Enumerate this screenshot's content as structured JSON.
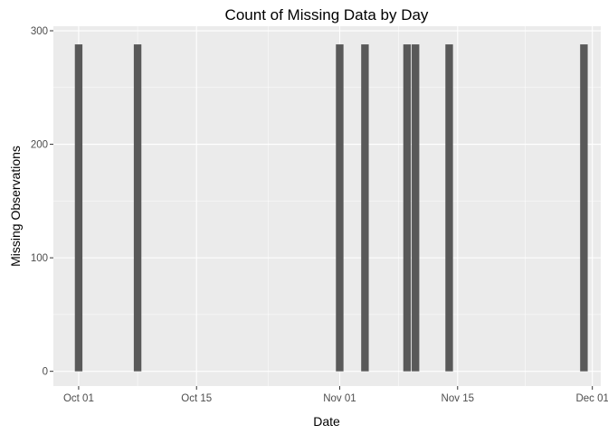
{
  "chart_data": {
    "type": "bar",
    "title": "Count of Missing Data by Day",
    "xlabel": "Date",
    "ylabel": "Missing Observations",
    "x": [
      "2012-10-01",
      "2012-10-08",
      "2012-11-01",
      "2012-11-04",
      "2012-11-09",
      "2012-11-10",
      "2012-11-14",
      "2012-11-30"
    ],
    "values": [
      288,
      288,
      288,
      288,
      288,
      288,
      288,
      288
    ],
    "xlim": [
      "2012-09-28",
      "2012-12-02"
    ],
    "ylim": [
      -13,
      304
    ],
    "x_ticks": [
      {
        "value": "2012-10-01",
        "label": "Oct 01"
      },
      {
        "value": "2012-10-15",
        "label": "Oct 15"
      },
      {
        "value": "2012-11-01",
        "label": "Nov 01"
      },
      {
        "value": "2012-11-15",
        "label": "Nov 15"
      },
      {
        "value": "2012-12-01",
        "label": "Dec 01"
      }
    ],
    "y_ticks": [
      0,
      100,
      200,
      300
    ],
    "grid": true,
    "legend": "none",
    "colors": {
      "bar": "#595959",
      "panel": "#ebebeb",
      "grid": "#ffffff"
    }
  }
}
